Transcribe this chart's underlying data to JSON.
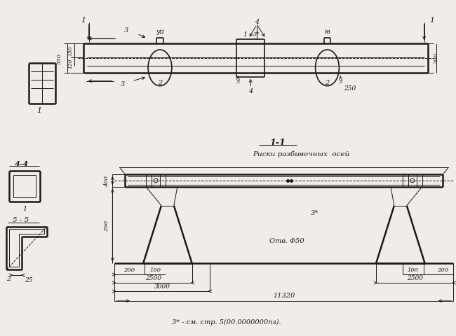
{
  "bg_color": "#f0ede8",
  "line_color": "#1a1a1a",
  "note": "3* - см. стр. 5(00.0000000пз).",
  "section_11": "1-1",
  "section_44": "4-4",
  "section_55": "5 - 5",
  "label_riska": "Риски разбивочных  осей",
  "label_otv": "Отв. Φ50",
  "label_vii": "уіі",
  "label_iv": "iв",
  "label_3star": "3*",
  "label_3star2": "3*"
}
